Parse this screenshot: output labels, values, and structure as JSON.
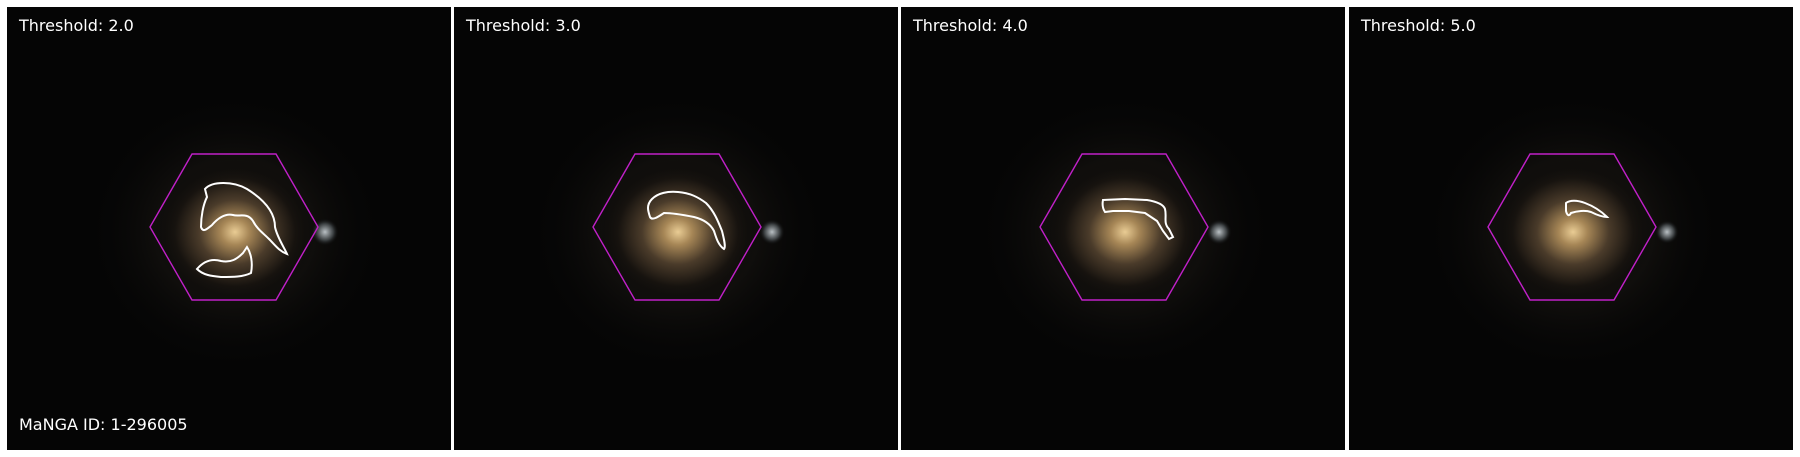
{
  "figure": {
    "panels": [
      {
        "threshold_label": "Threshold: 2.0"
      },
      {
        "threshold_label": "Threshold: 3.0"
      },
      {
        "threshold_label": "Threshold: 4.0"
      },
      {
        "threshold_label": "Threshold: 5.0"
      }
    ],
    "galaxy_id_label": "MaNGA ID: 1-296005"
  },
  "colors": {
    "hexagon": "#c020c8",
    "contour": "#ffffff",
    "label_text": "#ffffff",
    "background": "#050505"
  }
}
